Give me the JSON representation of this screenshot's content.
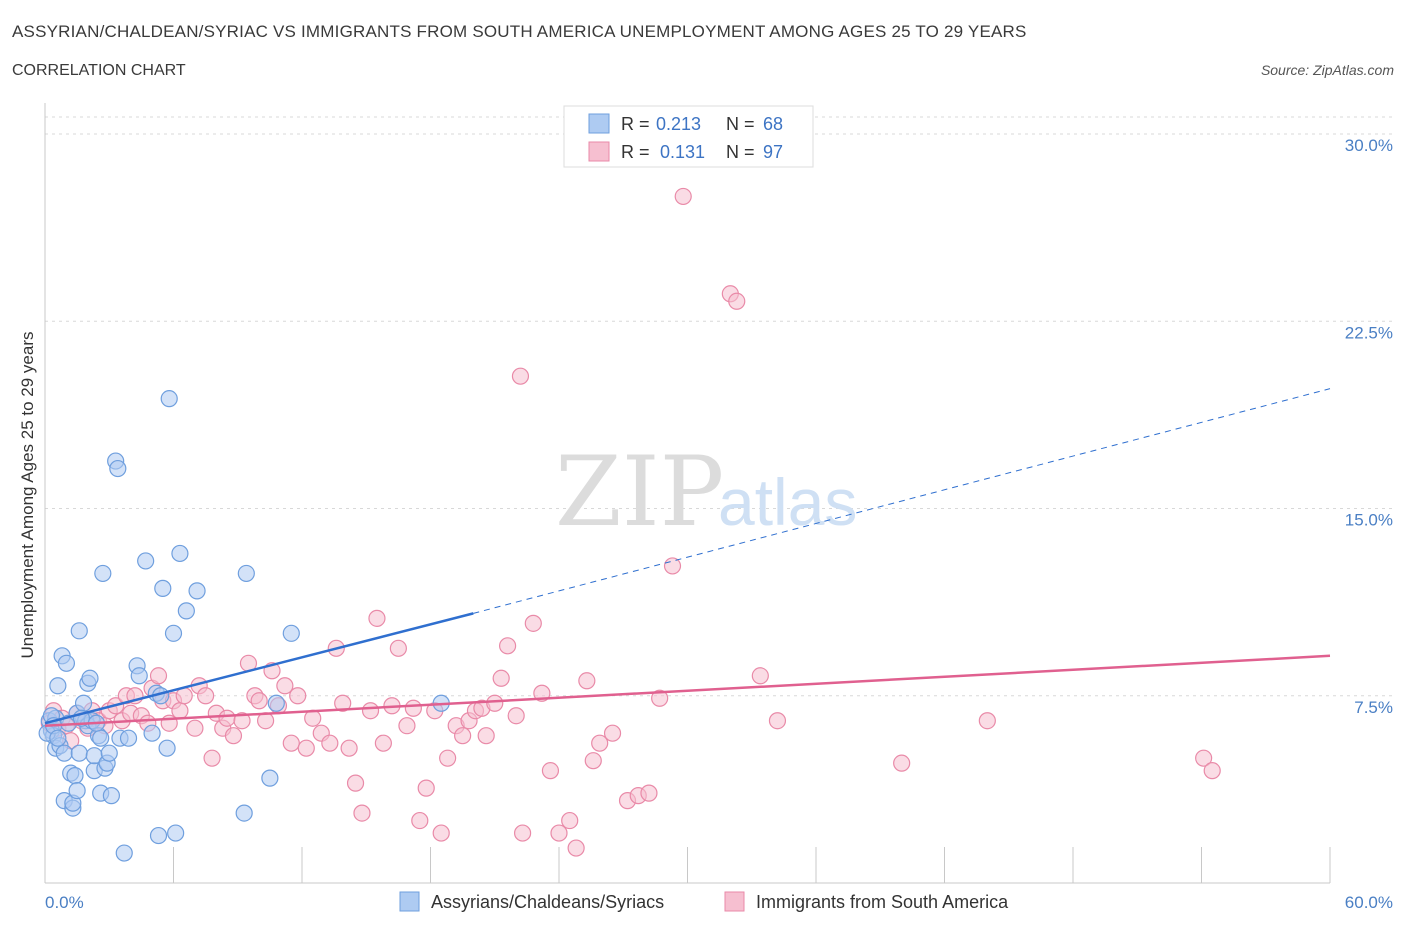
{
  "header": {
    "title": "ASSYRIAN/CHALDEAN/SYRIAC VS IMMIGRANTS FROM SOUTH AMERICA UNEMPLOYMENT AMONG AGES 25 TO 29 YEARS",
    "subtitle": "CORRELATION CHART",
    "source": "Source: ZipAtlas.com"
  },
  "watermark": {
    "zip": "ZIP",
    "atlas": "atlas"
  },
  "legend": {
    "r_label": "R =",
    "n_label": "N =",
    "rows": [
      {
        "r": "0.213",
        "n": "68"
      },
      {
        "r": "0.131",
        "n": "97"
      }
    ]
  },
  "colors": {
    "blue_fill": "#aecbf2",
    "blue_stroke": "#6f9fde",
    "blue_line": "#2f6fcf",
    "pink_fill": "#f6bfd0",
    "pink_stroke": "#e98aa8",
    "pink_line": "#e0608f",
    "tick_text": "#4a7fc4",
    "grid": "#d8d8d8"
  },
  "chart_data": {
    "type": "scatter",
    "title": "ASSYRIAN/CHALDEAN/SYRIAC VS IMMIGRANTS FROM SOUTH AMERICA UNEMPLOYMENT AMONG AGES 25 TO 29 YEARS",
    "xlabel": "",
    "ylabel": "Unemployment Among Ages 25 to 29 years",
    "xlim": [
      0,
      60
    ],
    "ylim": [
      0,
      30
    ],
    "x_tick_labels": [
      "0.0%",
      "60.0%"
    ],
    "y_ticks": [
      7.5,
      15.0,
      22.5,
      30.0
    ],
    "y_tick_labels": [
      "7.5%",
      "15.0%",
      "22.5%",
      "30.0%"
    ],
    "grid": true,
    "legend_position": "top-center",
    "series": [
      {
        "name": "Assyrians/Chaldeans/Syriacs",
        "R": 0.213,
        "N": 68,
        "trend": {
          "x0": 0,
          "y0": 6.4,
          "x1_solid": 20,
          "y1_solid": 10.8,
          "x1_dash": 60,
          "y1_dash": 19.8
        },
        "points": [
          [
            0.2,
            6.5
          ],
          [
            0.3,
            6.1
          ],
          [
            0.4,
            5.9
          ],
          [
            0.5,
            6.6
          ],
          [
            0.5,
            5.4
          ],
          [
            0.6,
            7.9
          ],
          [
            0.7,
            5.5
          ],
          [
            0.8,
            9.1
          ],
          [
            0.9,
            5.2
          ],
          [
            0.9,
            3.3
          ],
          [
            1.0,
            8.8
          ],
          [
            1.1,
            6.4
          ],
          [
            1.2,
            4.4
          ],
          [
            1.3,
            3.0
          ],
          [
            1.3,
            3.2
          ],
          [
            1.4,
            4.3
          ],
          [
            1.5,
            3.7
          ],
          [
            1.5,
            6.8
          ],
          [
            1.6,
            10.1
          ],
          [
            1.6,
            5.2
          ],
          [
            1.8,
            7.2
          ],
          [
            1.9,
            6.5
          ],
          [
            2.0,
            8.0
          ],
          [
            2.0,
            6.3
          ],
          [
            2.1,
            8.2
          ],
          [
            2.2,
            6.5
          ],
          [
            2.3,
            4.5
          ],
          [
            2.3,
            5.1
          ],
          [
            2.5,
            5.9
          ],
          [
            2.6,
            5.8
          ],
          [
            2.6,
            3.6
          ],
          [
            2.7,
            12.4
          ],
          [
            2.8,
            4.6
          ],
          [
            2.9,
            4.8
          ],
          [
            3.0,
            5.2
          ],
          [
            3.1,
            3.5
          ],
          [
            3.3,
            16.9
          ],
          [
            3.4,
            16.6
          ],
          [
            3.5,
            5.8
          ],
          [
            3.7,
            1.2
          ],
          [
            3.9,
            5.8
          ],
          [
            4.3,
            8.7
          ],
          [
            4.4,
            8.3
          ],
          [
            4.7,
            12.9
          ],
          [
            5.0,
            6.0
          ],
          [
            5.2,
            7.6
          ],
          [
            5.3,
            1.9
          ],
          [
            5.4,
            7.5
          ],
          [
            5.5,
            11.8
          ],
          [
            5.7,
            5.4
          ],
          [
            5.8,
            19.4
          ],
          [
            6.0,
            10.0
          ],
          [
            6.1,
            2.0
          ],
          [
            6.3,
            13.2
          ],
          [
            6.6,
            10.9
          ],
          [
            7.1,
            11.7
          ],
          [
            9.3,
            2.8
          ],
          [
            9.4,
            12.4
          ],
          [
            10.5,
            4.2
          ],
          [
            10.8,
            7.2
          ],
          [
            11.5,
            10.0
          ],
          [
            18.5,
            7.2
          ],
          [
            0.1,
            6.0
          ],
          [
            0.3,
            6.7
          ],
          [
            0.4,
            6.3
          ],
          [
            1.7,
            6.6
          ],
          [
            2.4,
            6.4
          ],
          [
            0.6,
            5.8
          ]
        ]
      },
      {
        "name": "Immigrants from South America",
        "R": 0.131,
        "N": 97,
        "trend": {
          "x0": 0,
          "y0": 6.3,
          "x1": 60,
          "y1": 9.1
        },
        "points": [
          [
            0.2,
            6.4
          ],
          [
            0.4,
            6.9
          ],
          [
            0.6,
            6.2
          ],
          [
            0.8,
            6.6
          ],
          [
            1.0,
            6.3
          ],
          [
            1.2,
            5.7
          ],
          [
            1.5,
            6.8
          ],
          [
            1.7,
            6.5
          ],
          [
            2.0,
            6.2
          ],
          [
            2.2,
            6.9
          ],
          [
            2.5,
            6.5
          ],
          [
            2.8,
            6.3
          ],
          [
            3.0,
            6.9
          ],
          [
            3.3,
            7.1
          ],
          [
            3.6,
            6.5
          ],
          [
            3.8,
            7.5
          ],
          [
            4.0,
            6.8
          ],
          [
            4.2,
            7.5
          ],
          [
            4.5,
            6.7
          ],
          [
            4.8,
            6.4
          ],
          [
            5.0,
            7.8
          ],
          [
            5.3,
            8.3
          ],
          [
            5.5,
            7.3
          ],
          [
            5.8,
            6.4
          ],
          [
            6.0,
            7.3
          ],
          [
            6.3,
            6.9
          ],
          [
            6.5,
            7.5
          ],
          [
            7.0,
            6.2
          ],
          [
            7.2,
            7.9
          ],
          [
            7.5,
            7.5
          ],
          [
            7.8,
            5.0
          ],
          [
            8.0,
            6.8
          ],
          [
            8.3,
            6.2
          ],
          [
            8.5,
            6.6
          ],
          [
            8.8,
            5.9
          ],
          [
            9.2,
            6.5
          ],
          [
            9.5,
            8.8
          ],
          [
            9.8,
            7.5
          ],
          [
            10.0,
            7.3
          ],
          [
            10.3,
            6.5
          ],
          [
            10.6,
            8.5
          ],
          [
            10.9,
            7.1
          ],
          [
            11.2,
            7.9
          ],
          [
            11.5,
            5.6
          ],
          [
            11.8,
            7.5
          ],
          [
            12.2,
            5.4
          ],
          [
            12.5,
            6.6
          ],
          [
            12.9,
            6.0
          ],
          [
            13.3,
            5.6
          ],
          [
            13.6,
            9.4
          ],
          [
            13.9,
            7.2
          ],
          [
            14.2,
            5.4
          ],
          [
            14.5,
            4.0
          ],
          [
            14.8,
            2.8
          ],
          [
            15.2,
            6.9
          ],
          [
            15.5,
            10.6
          ],
          [
            15.8,
            5.6
          ],
          [
            16.2,
            7.1
          ],
          [
            16.5,
            9.4
          ],
          [
            16.9,
            6.3
          ],
          [
            17.2,
            7.0
          ],
          [
            17.5,
            2.5
          ],
          [
            17.8,
            3.8
          ],
          [
            18.2,
            6.9
          ],
          [
            18.5,
            2.0
          ],
          [
            18.8,
            5.0
          ],
          [
            19.2,
            6.3
          ],
          [
            19.5,
            5.9
          ],
          [
            19.8,
            6.5
          ],
          [
            20.1,
            6.9
          ],
          [
            20.4,
            7.0
          ],
          [
            20.6,
            5.9
          ],
          [
            21.0,
            7.2
          ],
          [
            21.3,
            8.2
          ],
          [
            21.6,
            9.5
          ],
          [
            22.0,
            6.7
          ],
          [
            22.3,
            2.0
          ],
          [
            22.8,
            10.4
          ],
          [
            23.2,
            7.6
          ],
          [
            23.6,
            4.5
          ],
          [
            24.0,
            2.0
          ],
          [
            24.5,
            2.5
          ],
          [
            24.8,
            1.4
          ],
          [
            25.3,
            8.1
          ],
          [
            25.6,
            4.9
          ],
          [
            25.9,
            5.6
          ],
          [
            26.5,
            6.0
          ],
          [
            27.2,
            3.3
          ],
          [
            27.7,
            3.5
          ],
          [
            28.2,
            3.6
          ],
          [
            28.7,
            7.4
          ],
          [
            29.8,
            27.5
          ],
          [
            32.0,
            23.6
          ],
          [
            32.3,
            23.3
          ],
          [
            22.2,
            20.3
          ],
          [
            29.3,
            12.7
          ],
          [
            33.4,
            8.3
          ]
        ]
      }
    ],
    "extra_pink_outliers": [
      [
        34.2,
        6.5
      ],
      [
        40.0,
        4.8
      ],
      [
        44.0,
        6.5
      ],
      [
        54.1,
        5.0
      ],
      [
        54.5,
        4.5
      ]
    ]
  },
  "bottom_legend": {
    "items": [
      {
        "label": "Assyrians/Chaldeans/Syriacs"
      },
      {
        "label": "Immigrants from South America"
      }
    ]
  }
}
